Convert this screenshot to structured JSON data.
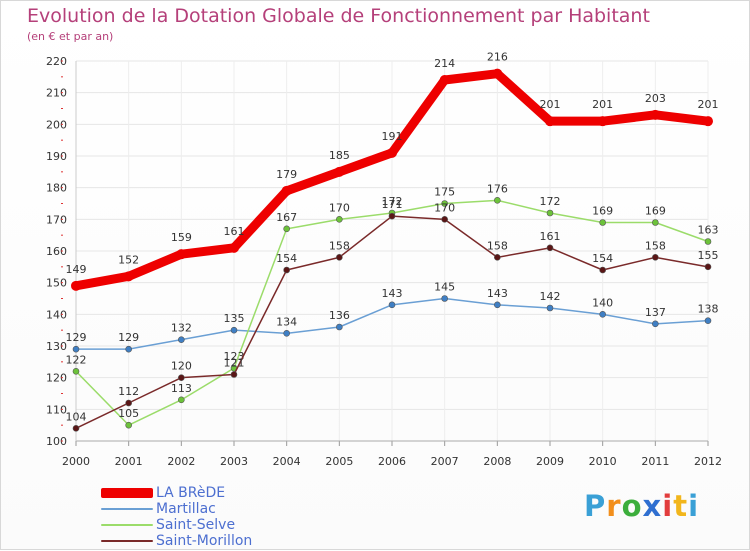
{
  "header": {
    "title": "Evolution de la Dotation Globale de Fonctionnement par Habitant",
    "subtitle": "(en € et par an)"
  },
  "brand": {
    "letters": [
      "P",
      "r",
      "o",
      "x",
      "i",
      "t",
      "i"
    ],
    "colors": [
      "#3aa0d6",
      "#f28f1c",
      "#3cae3c",
      "#2f6fd0",
      "#e23d3d",
      "#f2b61c",
      "#3aa0d6"
    ]
  },
  "chart_data": {
    "type": "line",
    "x": [
      "2000",
      "2001",
      "2002",
      "2003",
      "2004",
      "2005",
      "2006",
      "2007",
      "2008",
      "2009",
      "2010",
      "2011",
      "2012"
    ],
    "ylim": [
      100,
      220
    ],
    "yticks": [
      100,
      110,
      120,
      130,
      140,
      150,
      160,
      170,
      180,
      190,
      200,
      210,
      220
    ],
    "grid": true,
    "legend_position": "bottom-left",
    "series": [
      {
        "name": "LA BRèDE",
        "color": "#ee0000",
        "marker": "#ee0000",
        "emphasis": true,
        "values": [
          149,
          152,
          159,
          161,
          179,
          185,
          191,
          214,
          216,
          201,
          201,
          203,
          201
        ]
      },
      {
        "name": "Martillac",
        "color": "#6a9fd4",
        "marker": "#3f7fc4",
        "emphasis": false,
        "values": [
          129,
          129,
          132,
          135,
          134,
          136,
          143,
          145,
          143,
          142,
          140,
          137,
          138
        ]
      },
      {
        "name": "Saint-Selve",
        "color": "#9bdc6a",
        "marker": "#6cc23a",
        "emphasis": false,
        "values": [
          122,
          105,
          113,
          123,
          167,
          170,
          172,
          175,
          176,
          172,
          169,
          169,
          163
        ]
      },
      {
        "name": "Saint-Morillon",
        "color": "#7a2a2a",
        "marker": "#5a1616",
        "emphasis": false,
        "values": [
          104,
          112,
          120,
          121,
          154,
          158,
          171,
          170,
          158,
          161,
          154,
          158,
          155
        ]
      }
    ]
  }
}
